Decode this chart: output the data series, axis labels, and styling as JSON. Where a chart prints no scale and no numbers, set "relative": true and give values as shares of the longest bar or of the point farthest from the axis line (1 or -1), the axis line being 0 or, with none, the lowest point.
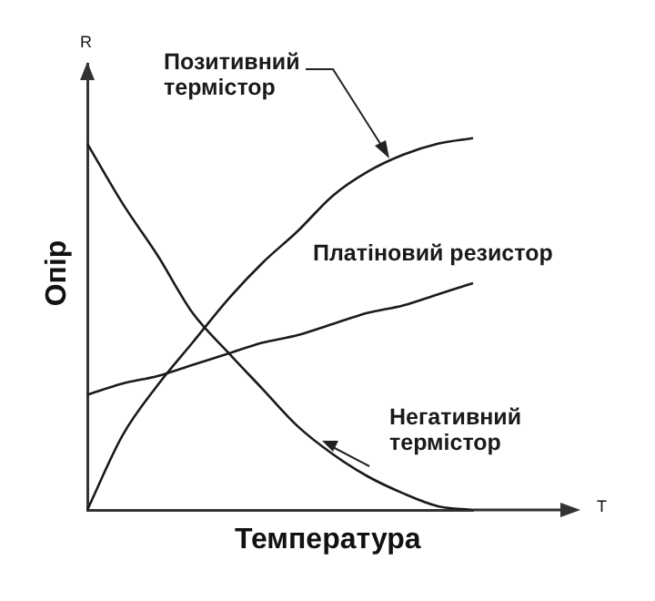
{
  "chart_data": {
    "type": "line",
    "relative": true,
    "xlabel": "Температура",
    "ylabel": "Опір",
    "annotations": [
      "R",
      "T"
    ],
    "categories": [
      null,
      null,
      null,
      null,
      null,
      null,
      null,
      null,
      null,
      null,
      null,
      null
    ],
    "series": [
      {
        "name": "Позитивний термістор",
        "color": "#1a1a1a",
        "values": [
          0,
          0.2,
          0.335,
          0.45,
          0.565,
          0.665,
          0.75,
          0.845,
          0.91,
          0.955,
          0.985,
          1
        ]
      },
      {
        "name": "Платіновий резистор",
        "color": "#1a1a1a",
        "values": [
          0.31,
          0.34,
          0.36,
          0.39,
          0.42,
          0.45,
          0.47,
          0.5,
          0.53,
          0.55,
          0.58,
          0.61
        ]
      },
      {
        "name": "Негативний термістор",
        "color": "#1a1a1a",
        "values": [
          0.985,
          0.825,
          0.685,
          0.53,
          0.425,
          0.325,
          0.225,
          0.15,
          0.09,
          0.045,
          0.01,
          0
        ]
      }
    ],
    "grid": false,
    "legend": false,
    "marker": "none",
    "line_style": "solid"
  }
}
